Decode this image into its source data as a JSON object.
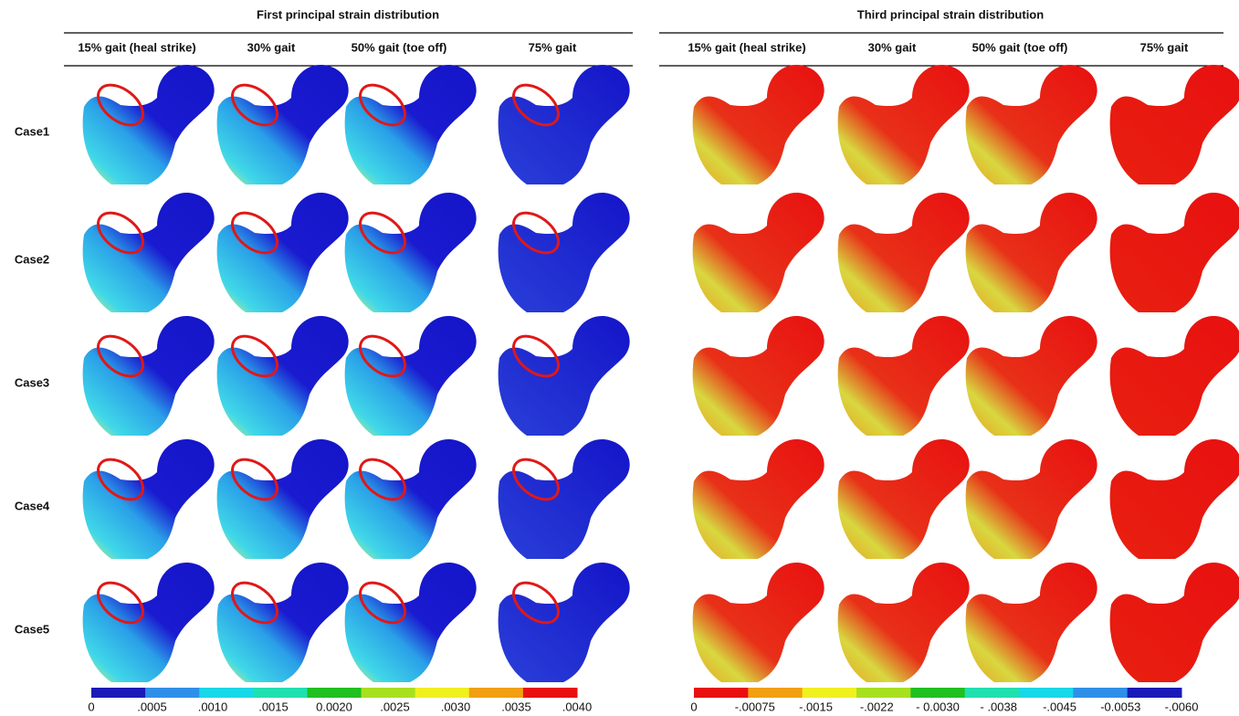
{
  "left_panel": {
    "title": "First principal strain distribution",
    "columns": [
      "15% gait (heal strike)",
      "30% gait",
      "50% gait (toe off)",
      "75% gait"
    ],
    "colorbar_labels": [
      "0",
      ".0005",
      ".0010",
      ".0015",
      "0.0020",
      ".0025",
      ".0030",
      ".0035",
      ".0040"
    ]
  },
  "right_panel": {
    "title": "Third principal strain distribution",
    "columns": [
      "15% gait (heal strike)",
      "30% gait",
      "50% gait (toe off)",
      "75% gait"
    ],
    "colorbar_labels": [
      "0",
      "-.00075",
      "-.0015",
      "-.0022",
      "- 0.0030",
      "- .0038",
      "-.0045",
      "-0.0053",
      "-.0060"
    ]
  },
  "rows": [
    "Case1",
    "Case2",
    "Case3",
    "Case4",
    "Case5"
  ]
}
